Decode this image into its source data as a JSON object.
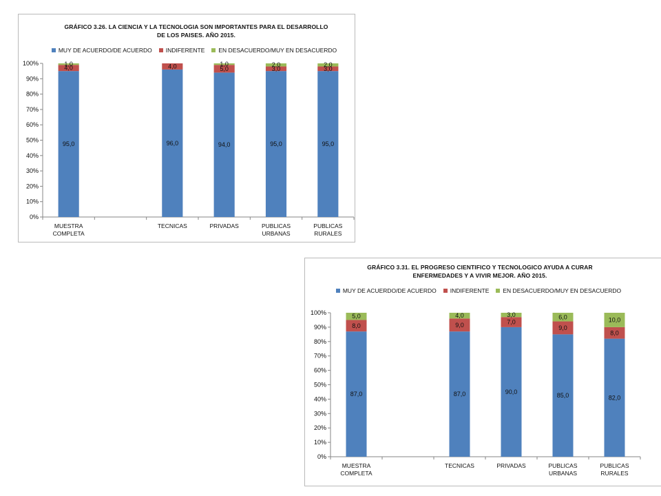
{
  "legend": [
    {
      "label": "MUY DE ACUERDO/DE ACUERDO",
      "color": "#4f81bd"
    },
    {
      "label": "INDIFERENTE",
      "color": "#c0504d"
    },
    {
      "label": "EN DESACUERDO/MUY EN DESACUERDO",
      "color": "#9bbb59"
    }
  ],
  "chart_data": [
    {
      "type": "bar",
      "stacked": true,
      "title_lines": [
        "GRÁFICO 3.26. LA CIENCIA Y LA TECNOLOGIA SON IMPORTANTES PARA EL DESARROLLO",
        "DE LOS PAISES. AÑO 2015."
      ],
      "categories": [
        {
          "lines": [
            "MUESTRA",
            "COMPLETA"
          ]
        },
        {
          "lines": [
            ""
          ]
        },
        {
          "lines": [
            "TECNICAS"
          ]
        },
        {
          "lines": [
            "PRIVADAS"
          ]
        },
        {
          "lines": [
            "PUBLICAS",
            "URBANAS"
          ]
        },
        {
          "lines": [
            "PUBLICAS",
            "RURALES"
          ]
        }
      ],
      "series": [
        {
          "name": "MUY DE ACUERDO/DE ACUERDO",
          "values": [
            95.0,
            null,
            96.0,
            94.0,
            95.0,
            95.0
          ],
          "labels": [
            "95,0",
            "",
            "96,0",
            "94,0",
            "95,0",
            "95,0"
          ]
        },
        {
          "name": "INDIFERENTE",
          "values": [
            4.0,
            null,
            4.0,
            5.0,
            3.0,
            3.0
          ],
          "labels": [
            "4,0",
            "",
            "4,0",
            "5,0",
            "3,0",
            "3,0"
          ]
        },
        {
          "name": "EN DESACUERDO/MUY EN DESACUERDO",
          "values": [
            1.0,
            null,
            0,
            1.0,
            2.0,
            2.0
          ],
          "labels": [
            "1,0",
            "",
            "",
            "1,0",
            "2,0",
            "2,0"
          ]
        }
      ],
      "yticks": [
        "0%",
        "10%",
        "20%",
        "30%",
        "40%",
        "50%",
        "60%",
        "70%",
        "80%",
        "90%",
        "100%"
      ],
      "ylim": [
        0,
        100
      ],
      "legend_position": "top",
      "grid": false
    },
    {
      "type": "bar",
      "stacked": true,
      "title_lines": [
        "GRÁFICO 3.31. EL PROGRESO CIENTIFICO Y TECNOLOGICO  AYUDA A CURAR",
        "ENFERMEDADES Y A VIVIR MEJOR. AÑO 2015."
      ],
      "categories": [
        {
          "lines": [
            "MUESTRA",
            "COMPLETA"
          ]
        },
        {
          "lines": [
            ""
          ]
        },
        {
          "lines": [
            "TECNICAS"
          ]
        },
        {
          "lines": [
            "PRIVADAS"
          ]
        },
        {
          "lines": [
            "PUBLICAS",
            "URBANAS"
          ]
        },
        {
          "lines": [
            "PUBLICAS",
            "RURALES"
          ]
        }
      ],
      "series": [
        {
          "name": "MUY DE ACUERDO/DE ACUERDO",
          "values": [
            87.0,
            null,
            87.0,
            90.0,
            85.0,
            82.0
          ],
          "labels": [
            "87,0",
            "",
            "87,0",
            "90,0",
            "85,0",
            "82,0"
          ]
        },
        {
          "name": "INDIFERENTE",
          "values": [
            8.0,
            null,
            9.0,
            7.0,
            9.0,
            8.0
          ],
          "labels": [
            "8,0",
            "",
            "9,0",
            "7,0",
            "9,0",
            "8,0"
          ]
        },
        {
          "name": "EN DESACUERDO/MUY EN DESACUERDO",
          "values": [
            5.0,
            null,
            4.0,
            3.0,
            6.0,
            10.0
          ],
          "labels": [
            "5,0",
            "",
            "4,0",
            "3,0",
            "6,0",
            "10,0"
          ]
        }
      ],
      "yticks": [
        "0%",
        "10%",
        "20%",
        "30%",
        "40%",
        "50%",
        "60%",
        "70%",
        "80%",
        "90%",
        "100%"
      ],
      "ylim": [
        0,
        100
      ],
      "legend_position": "top",
      "grid": false
    }
  ]
}
